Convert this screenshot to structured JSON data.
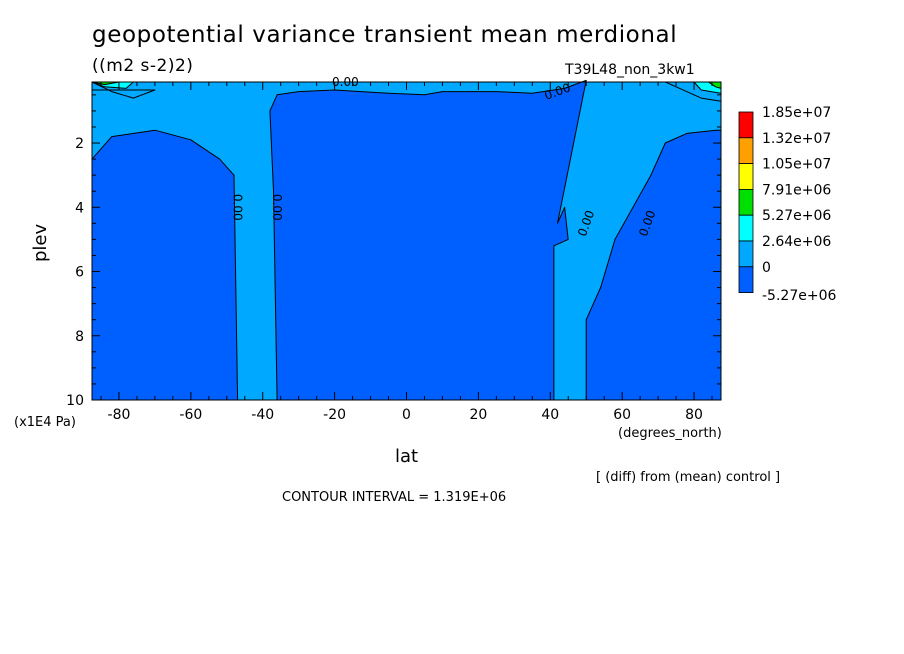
{
  "chart_data": {
    "type": "contour",
    "title": "geopotential variance transient mean merdional",
    "units": "((m2 s-2)2)",
    "run": "T39L48_non_3kw1",
    "xlabel": "lat",
    "xunits": "(degrees_north)",
    "ylabel": "plev",
    "yunits": "(x1E4 Pa)",
    "note": "[ (diff) from (mean) control ]",
    "contour_interval_text": "CONTOUR INTERVAL = 1.319E+06",
    "xlim": [
      -87.5,
      87.5
    ],
    "ylim": [
      10,
      0.1
    ],
    "y_inverted": true,
    "x_ticks": [
      -80,
      -60,
      -40,
      -20,
      0,
      20,
      40,
      60,
      80
    ],
    "x_tick_labels": [
      "-80",
      "-60",
      "-40",
      "-20",
      "0",
      "20",
      "40",
      "60",
      "80"
    ],
    "y_ticks": [
      2,
      4,
      6,
      8,
      10
    ],
    "y_tick_labels": [
      "2",
      "4",
      "6",
      "8",
      "10"
    ],
    "contour_labels": [
      {
        "text": "0.00",
        "x": -17,
        "y": 0.1,
        "rotation": 0
      },
      {
        "text": "0.00",
        "x": 42,
        "y": 0.4,
        "rotation": -20
      },
      {
        "text": "0.00",
        "x": -47,
        "y": 4.0,
        "rotation": 90
      },
      {
        "text": "0.00",
        "x": -36,
        "y": 4.0,
        "rotation": 90
      },
      {
        "text": "0.00",
        "x": 50,
        "y": 4.5,
        "rotation": -70
      },
      {
        "text": "0.00",
        "x": 67,
        "y": 4.5,
        "rotation": -70
      }
    ],
    "colorbar": {
      "labels": [
        "1.85e+07",
        "1.32e+07",
        "1.05e+07",
        "7.91e+06",
        "5.27e+06",
        "2.64e+06",
        "0",
        "-5.27e+06"
      ],
      "colors": [
        "#ff0000",
        "#ffa000",
        "#ffff00",
        "#00e000",
        "#00ffff",
        "#00a8ff",
        "#0060ff"
      ]
    },
    "regions": [
      {
        "level": "-5.27e+06 to 0",
        "color": "#0060ff",
        "points": [
          [
            -87.5,
            2.5
          ],
          [
            -82,
            1.8
          ],
          [
            -70,
            1.6
          ],
          [
            -60,
            1.9
          ],
          [
            -52,
            2.5
          ],
          [
            -48,
            3.0
          ],
          [
            -47,
            10
          ],
          [
            -87.5,
            10
          ]
        ]
      },
      {
        "level": "-5.27e+06 to 0",
        "color": "#0060ff",
        "points": [
          [
            -36,
            10
          ],
          [
            -37,
            3.5
          ],
          [
            -38,
            1.0
          ],
          [
            -36,
            0.5
          ],
          [
            -30,
            0.4
          ],
          [
            -20,
            0.35
          ],
          [
            -5,
            0.45
          ],
          [
            5,
            0.5
          ],
          [
            10,
            0.4
          ],
          [
            25,
            0.4
          ],
          [
            35,
            0.45
          ],
          [
            44,
            0.3
          ],
          [
            50,
            0.05
          ],
          [
            42,
            4.5
          ],
          [
            44,
            4.0
          ],
          [
            45,
            5.0
          ],
          [
            41,
            5.2
          ],
          [
            41,
            10
          ]
        ]
      },
      {
        "level": "-5.27e+06 to 0",
        "color": "#0060ff",
        "points": [
          [
            50,
            10
          ],
          [
            50,
            7.5
          ],
          [
            54,
            6.5
          ],
          [
            58,
            5.0
          ],
          [
            68,
            3.0
          ],
          [
            72,
            2.0
          ],
          [
            78,
            1.7
          ],
          [
            86,
            1.6
          ],
          [
            87.5,
            1.6
          ],
          [
            87.5,
            10
          ]
        ]
      },
      {
        "level": "0 to 2.64e+06",
        "color": "#00a8ff",
        "points": [
          [
            -87.5,
            0.1
          ],
          [
            -82,
            0.4
          ],
          [
            -76,
            0.6
          ],
          [
            -70,
            0.35
          ],
          [
            -87.5,
            0.35
          ]
        ]
      },
      {
        "level": "0 to 2.64e+06",
        "color": "#00a8ff",
        "points": [
          [
            72,
            0.1
          ],
          [
            76,
            0.3
          ],
          [
            82,
            0.6
          ],
          [
            87.5,
            0.7
          ],
          [
            87.5,
            0.1
          ]
        ]
      },
      {
        "level": "2.64e+06 to 5.27e+06",
        "color": "#00ffff",
        "points": [
          [
            -87.5,
            0.1
          ],
          [
            -84,
            0.25
          ],
          [
            -78,
            0.3
          ],
          [
            -76,
            0.1
          ]
        ]
      },
      {
        "level": "2.64e+06 to 5.27e+06",
        "color": "#00ffff",
        "points": [
          [
            80,
            0.1
          ],
          [
            82,
            0.35
          ],
          [
            87.5,
            0.45
          ],
          [
            87.5,
            0.1
          ]
        ]
      },
      {
        "level": "5.27e+06 to 7.91e+06",
        "color": "#00e000",
        "points": [
          [
            -87.5,
            0.1
          ],
          [
            -84,
            0.18
          ],
          [
            -80,
            0.1
          ]
        ]
      },
      {
        "level": "5.27e+06 to 7.91e+06",
        "color": "#00e000",
        "points": [
          [
            84,
            0.1
          ],
          [
            86,
            0.25
          ],
          [
            87.5,
            0.3
          ],
          [
            87.5,
            0.1
          ]
        ]
      }
    ]
  }
}
